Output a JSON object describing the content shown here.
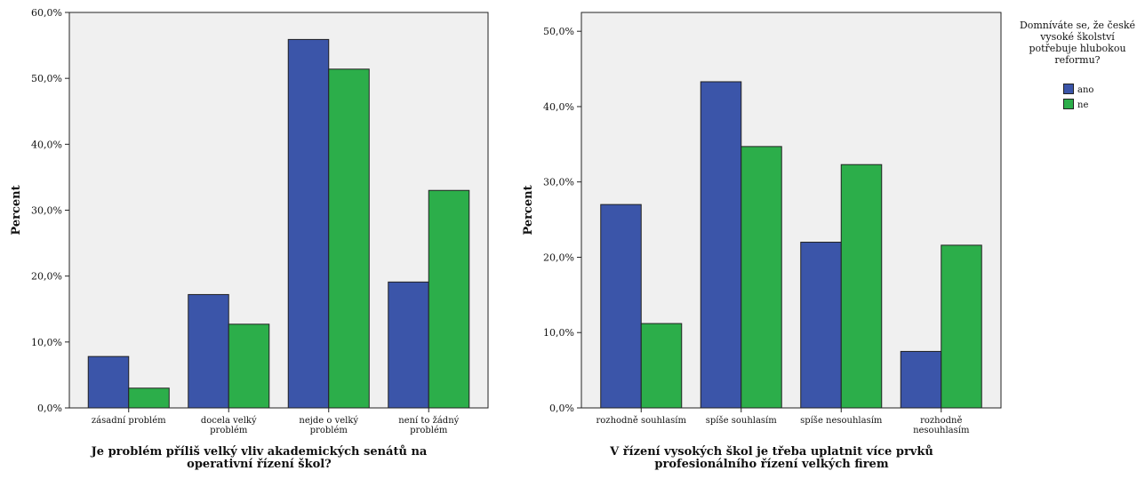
{
  "colors": {
    "ano": "#3b55a9",
    "ne": "#2cae4a",
    "plot_bg": "#f0f0f0"
  },
  "legend": {
    "title_lines": [
      "Domníváte se, že české",
      "vysoké školství",
      "potřebuje hlubokou",
      "reformu?"
    ],
    "items": [
      "ano",
      "ne"
    ]
  },
  "chart_data": [
    {
      "type": "bar",
      "title": "",
      "xlabel": "Je problém příliš velký vliv akademických senátů na operativní řízení škol?",
      "xlabel_lines": [
        "Je problém příliš velký vliv akademických senátů na",
        "operativní řízení škol?"
      ],
      "ylabel": "Percent",
      "ylim": [
        0,
        60
      ],
      "yticks": [
        "0,0%",
        "10,0%",
        "20,0%",
        "30,0%",
        "40,0%",
        "50,0%",
        "60,0%"
      ],
      "categories": [
        "zásadní problém",
        "docela velký problém",
        "nejde o velký problém",
        "není to žádný problém"
      ],
      "category_lines": [
        [
          "zásadní problém"
        ],
        [
          "docela velký",
          "problém"
        ],
        [
          "nejde o velký",
          "problém"
        ],
        [
          "není to žádný",
          "problém"
        ]
      ],
      "series": [
        {
          "name": "ano",
          "values": [
            7.8,
            17.2,
            55.9,
            19.1
          ]
        },
        {
          "name": "ne",
          "values": [
            3.0,
            12.7,
            51.4,
            33.0
          ]
        }
      ]
    },
    {
      "type": "bar",
      "title": "",
      "xlabel": "V řízení vysokých škol je třeba uplatnit více prvků profesionálního řízení velkých firem",
      "xlabel_lines": [
        "V řízení vysokých škol je třeba uplatnit více prvků",
        "profesionálního řízení velkých firem"
      ],
      "ylabel": "Percent",
      "ylim": [
        0,
        52.5
      ],
      "yticks": [
        "0,0%",
        "10,0%",
        "20,0%",
        "30,0%",
        "40,0%",
        "50,0%"
      ],
      "categories": [
        "rozhodně souhlasím",
        "spíše souhlasím",
        "spíše nesouhlasím",
        "rozhodně nesouhlasím"
      ],
      "category_lines": [
        [
          "rozhodně souhlasím"
        ],
        [
          "spíše souhlasím"
        ],
        [
          "spíše nesouhlasím"
        ],
        [
          "rozhodně",
          "nesouhlasím"
        ]
      ],
      "series": [
        {
          "name": "ano",
          "values": [
            27.0,
            43.3,
            22.0,
            7.5
          ]
        },
        {
          "name": "ne",
          "values": [
            11.2,
            34.7,
            32.3,
            21.6
          ]
        }
      ]
    }
  ]
}
